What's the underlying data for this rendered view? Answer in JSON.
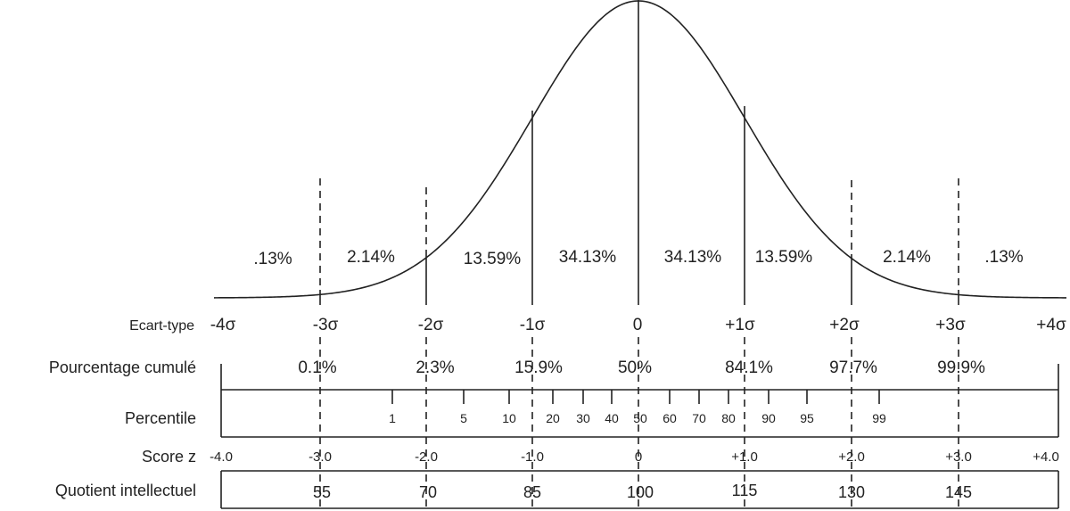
{
  "chart_data": {
    "type": "normal-distribution",
    "segment_percentages": [
      ".13%",
      "2.14%",
      "13.59%",
      "34.13%",
      "34.13%",
      "13.59%",
      "2.14%",
      ".13%"
    ],
    "rows": {
      "sigma": {
        "label": "Ecart-type",
        "ticks": [
          "-4σ",
          "-3σ",
          "-2σ",
          "-1σ",
          "0",
          "+1σ",
          "+2σ",
          "+3σ",
          "+4σ"
        ]
      },
      "cumulative": {
        "label": "Pourcentage cumulé",
        "ticks": [
          "0.1%",
          "2.3%",
          "15.9%",
          "50%",
          "84.1%",
          "97.7%",
          "99.9%"
        ]
      },
      "percentile": {
        "label": "Percentile",
        "ticks": [
          "1",
          "5",
          "10",
          "20",
          "30",
          "40",
          "50",
          "60",
          "70",
          "80",
          "90",
          "95",
          "99"
        ]
      },
      "zscore": {
        "label": "Score z",
        "ticks": [
          "-4.0",
          "-3.0",
          "-2.0",
          "-1.0",
          "0",
          "+1.0",
          "+2.0",
          "+3.0",
          "+4.0"
        ]
      },
      "iq": {
        "label": "Quotient intellectuel",
        "ticks": [
          "55",
          "70",
          "85",
          "100",
          "115",
          "130",
          "145"
        ]
      }
    }
  }
}
